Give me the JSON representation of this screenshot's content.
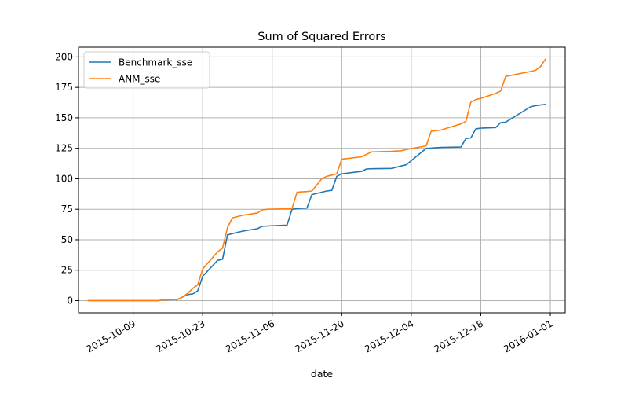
{
  "chart_data": {
    "type": "line",
    "title": "Sum of Squared Errors",
    "xlabel": "date",
    "ylabel": "",
    "x_type": "date",
    "xlim": [
      "2015-09-28",
      "2016-01-04"
    ],
    "ylim": [
      -10,
      208
    ],
    "x_ticks": [
      "2015-10-09",
      "2015-10-23",
      "2015-11-06",
      "2015-11-20",
      "2015-12-04",
      "2015-12-18",
      "2016-01-01"
    ],
    "x_tick_labels": [
      "2015-10-09",
      "2015-10-23",
      "2015-11-06",
      "2015-11-20",
      "2015-12-04",
      "2015-12-18",
      "2016-01-01"
    ],
    "y_ticks": [
      0,
      25,
      50,
      75,
      100,
      125,
      150,
      175,
      200
    ],
    "y_tick_labels": [
      "0",
      "25",
      "50",
      "75",
      "100",
      "125",
      "150",
      "175",
      "200"
    ],
    "grid": true,
    "legend_position": "top-left",
    "series": [
      {
        "name": "Benchmark_sse",
        "color": "#1f77b4",
        "x": [
          "2015-09-30",
          "2015-10-14",
          "2015-10-15",
          "2015-10-18",
          "2015-10-19",
          "2015-10-20",
          "2015-10-21",
          "2015-10-22",
          "2015-10-23",
          "2015-10-26",
          "2015-10-27",
          "2015-10-28",
          "2015-10-29",
          "2015-10-31",
          "2015-11-03",
          "2015-11-04",
          "2015-11-05",
          "2015-11-09",
          "2015-11-10",
          "2015-11-11",
          "2015-11-13",
          "2015-11-14",
          "2015-11-16",
          "2015-11-17",
          "2015-11-18",
          "2015-11-19",
          "2015-11-20",
          "2015-11-24",
          "2015-11-25",
          "2015-11-26",
          "2015-11-30",
          "2015-12-02",
          "2015-12-03",
          "2015-12-07",
          "2015-12-08",
          "2015-12-09",
          "2015-12-10",
          "2015-12-14",
          "2015-12-15",
          "2015-12-16",
          "2015-12-17",
          "2015-12-18",
          "2015-12-21",
          "2015-12-22",
          "2015-12-23",
          "2015-12-28",
          "2015-12-29",
          "2015-12-30",
          "2015-12-31"
        ],
        "y": [
          0,
          0,
          0.5,
          1,
          3,
          5,
          5.5,
          8,
          20,
          33,
          34,
          54,
          55,
          57,
          59,
          61,
          61.3,
          62,
          75,
          75.5,
          76,
          87,
          89,
          90,
          90.5,
          102,
          104,
          106,
          108,
          108.2,
          108.5,
          110.5,
          111.5,
          125,
          125.2,
          125.5,
          125.7,
          126,
          133,
          133.5,
          141,
          141.5,
          142,
          146,
          146.5,
          159,
          160,
          160.5,
          161
        ]
      },
      {
        "name": "ANM_sse",
        "color": "#ff7f0e",
        "x": [
          "2015-09-30",
          "2015-10-14",
          "2015-10-15",
          "2015-10-18",
          "2015-10-19",
          "2015-10-20",
          "2015-10-21",
          "2015-10-22",
          "2015-10-23",
          "2015-10-26",
          "2015-10-27",
          "2015-10-28",
          "2015-10-29",
          "2015-10-31",
          "2015-11-03",
          "2015-11-04",
          "2015-11-05",
          "2015-11-09",
          "2015-11-10",
          "2015-11-11",
          "2015-11-13",
          "2015-11-14",
          "2015-11-16",
          "2015-11-17",
          "2015-11-18",
          "2015-11-19",
          "2015-11-20",
          "2015-11-24",
          "2015-11-25",
          "2015-11-26",
          "2015-11-30",
          "2015-12-02",
          "2015-12-03",
          "2015-12-07",
          "2015-12-08",
          "2015-12-09",
          "2015-12-10",
          "2015-12-14",
          "2015-12-15",
          "2015-12-16",
          "2015-12-17",
          "2015-12-18",
          "2015-12-21",
          "2015-12-22",
          "2015-12-23",
          "2015-12-28",
          "2015-12-29",
          "2015-12-30",
          "2015-12-31"
        ],
        "y": [
          0,
          0,
          0.5,
          1,
          3,
          6,
          10,
          13,
          26,
          40,
          43,
          60,
          68,
          70,
          72,
          74.5,
          75,
          75.3,
          75.5,
          89,
          89.5,
          90,
          100,
          102,
          103,
          104,
          116,
          118,
          120,
          122,
          122.5,
          123,
          124,
          127,
          139,
          139.5,
          140,
          145,
          147,
          163,
          165,
          166,
          170,
          172,
          184,
          188,
          189,
          192,
          198
        ]
      }
    ]
  }
}
